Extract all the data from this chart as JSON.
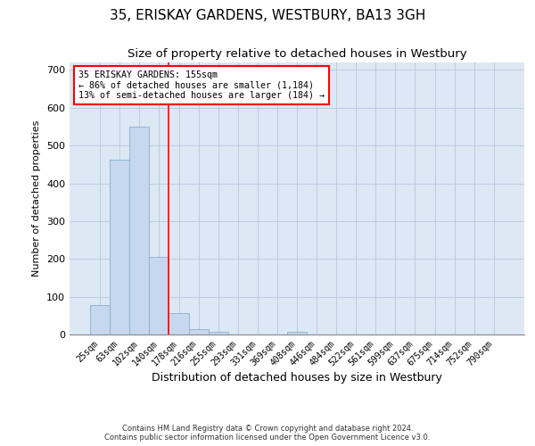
{
  "title": "35, ERISKAY GARDENS, WESTBURY, BA13 3GH",
  "subtitle": "Size of property relative to detached houses in Westbury",
  "xlabel": "Distribution of detached houses by size in Westbury",
  "ylabel": "Number of detached properties",
  "bar_color": "#c5d8ed",
  "bar_edge_color": "#8ab0d0",
  "background_color": "#ffffff",
  "axes_bg_color": "#dde8f5",
  "grid_color": "#b8cce0",
  "categories": [
    "25sqm",
    "63sqm",
    "102sqm",
    "140sqm",
    "178sqm",
    "216sqm",
    "255sqm",
    "293sqm",
    "331sqm",
    "369sqm",
    "408sqm",
    "446sqm",
    "484sqm",
    "522sqm",
    "561sqm",
    "599sqm",
    "637sqm",
    "675sqm",
    "714sqm",
    "752sqm",
    "790sqm"
  ],
  "values": [
    78,
    462,
    550,
    205,
    57,
    14,
    8,
    0,
    0,
    0,
    7,
    0,
    0,
    0,
    0,
    0,
    0,
    0,
    0,
    0,
    0
  ],
  "ylim": [
    0,
    720
  ],
  "yticks": [
    0,
    100,
    200,
    300,
    400,
    500,
    600,
    700
  ],
  "red_line_x": 3.5,
  "annotation_line1": "35 ERISKAY GARDENS: 155sqm",
  "annotation_line2": "← 86% of detached houses are smaller (1,184)",
  "annotation_line3": "13% of semi-detached houses are larger (184) →",
  "footer_line1": "Contains HM Land Registry data © Crown copyright and database right 2024.",
  "footer_line2": "Contains public sector information licensed under the Open Government Licence v3.0.",
  "title_fontsize": 11,
  "subtitle_fontsize": 9.5,
  "tick_fontsize": 7,
  "ylabel_fontsize": 8,
  "xlabel_fontsize": 9
}
